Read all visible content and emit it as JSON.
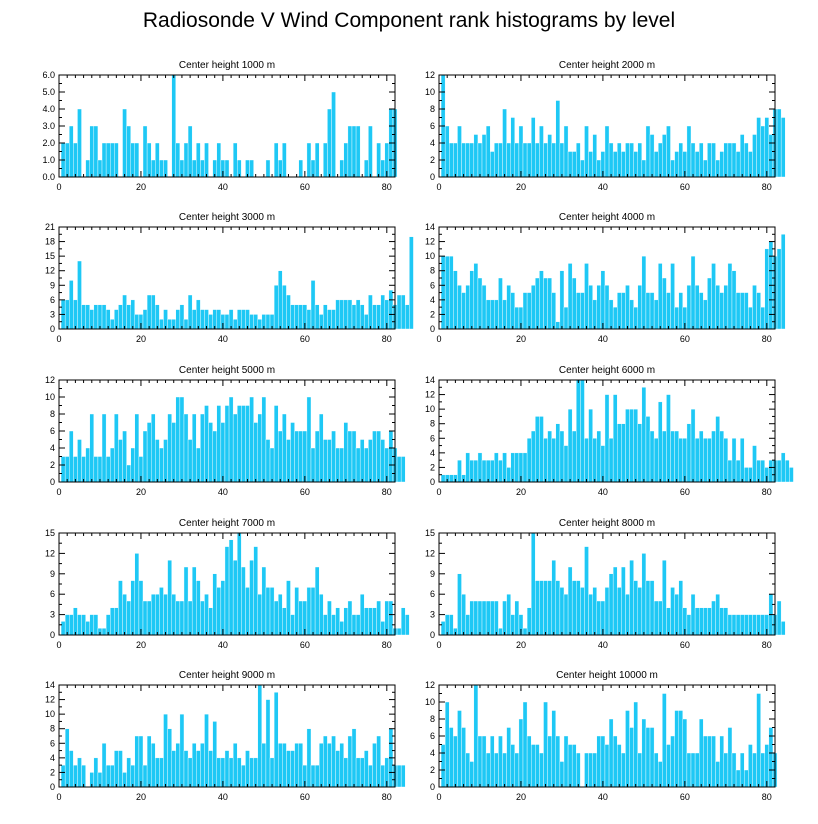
{
  "title": "Radiosonde V Wind Component rank histograms by level",
  "colors": {
    "bar": "#1ec8f5",
    "axis": "#000000",
    "background": "#ffffff"
  },
  "chart_data": [
    {
      "type": "bar",
      "title": "Center height 1000 m",
      "x_start": 1,
      "xlim": [
        0,
        82
      ],
      "xticks": [
        0,
        20,
        40,
        60,
        80
      ],
      "ylim": [
        0,
        6
      ],
      "yticks": [
        "0.0",
        "1.0",
        "2.0",
        "3.0",
        "4.0",
        "5.0",
        "6.0"
      ],
      "values": [
        2,
        2,
        3,
        2,
        4,
        0,
        1,
        3,
        3,
        1,
        2,
        2,
        2,
        2,
        0,
        4,
        3,
        2,
        2,
        0,
        3,
        2,
        1,
        2,
        1,
        1,
        0,
        6,
        2,
        1,
        2,
        3,
        1,
        2,
        1,
        2,
        0,
        1,
        2,
        1,
        1,
        0,
        2,
        1,
        0,
        1,
        1,
        0,
        0,
        0,
        1,
        0,
        2,
        1,
        2,
        0,
        0,
        0,
        1,
        0,
        2,
        1,
        2,
        0,
        2,
        4,
        5,
        0,
        1,
        2,
        3,
        3,
        3,
        0,
        1,
        3,
        0,
        2,
        1,
        2,
        4,
        4
      ]
    },
    {
      "type": "bar",
      "title": "Center height 2000 m",
      "x_start": 1,
      "xlim": [
        0,
        82
      ],
      "xticks": [
        0,
        20,
        40,
        60,
        80
      ],
      "ylim": [
        0,
        12
      ],
      "yticks": [
        "0",
        "2",
        "4",
        "6",
        "8",
        "10",
        "12"
      ],
      "values": [
        12,
        6,
        4,
        4,
        6,
        4,
        4,
        4,
        5,
        4,
        5,
        6,
        3,
        4,
        4,
        8,
        4,
        7,
        4,
        6,
        4,
        4,
        7,
        4,
        6,
        4,
        5,
        4,
        9,
        4,
        6,
        3,
        3,
        4,
        2,
        6,
        3,
        5,
        2,
        3,
        6,
        4,
        3,
        4,
        3,
        4,
        4,
        3,
        4,
        2,
        6,
        5,
        3,
        4,
        5,
        6,
        2,
        3,
        4,
        3,
        6,
        4,
        3,
        4,
        2,
        4,
        4,
        2,
        3,
        4,
        4,
        4,
        3,
        5,
        4,
        3,
        5,
        7,
        6,
        7,
        5,
        8,
        8,
        7
      ]
    },
    {
      "type": "bar",
      "title": "Center height 3000 m",
      "x_start": 1,
      "xlim": [
        0,
        82
      ],
      "xticks": [
        0,
        20,
        40,
        60,
        80
      ],
      "ylim": [
        0,
        21
      ],
      "yticks": [
        "0",
        "3",
        "6",
        "9",
        "12",
        "15",
        "18",
        "21"
      ],
      "values": [
        6,
        6,
        10,
        6,
        14,
        5,
        5,
        4,
        5,
        5,
        5,
        4,
        2,
        4,
        5,
        7,
        5,
        6,
        3,
        3,
        4,
        7,
        7,
        5,
        2,
        4,
        2,
        2,
        4,
        5,
        2,
        7,
        4,
        6,
        4,
        4,
        3,
        4,
        4,
        3,
        3,
        4,
        2,
        4,
        4,
        4,
        3,
        3,
        2,
        3,
        3,
        3,
        9,
        12,
        9,
        7,
        5,
        5,
        5,
        5,
        4,
        10,
        5,
        3,
        5,
        4,
        4,
        6,
        6,
        6,
        6,
        5,
        6,
        5,
        3,
        7,
        5,
        5,
        7,
        6,
        8,
        5,
        7,
        7,
        5,
        19
      ]
    },
    {
      "type": "bar",
      "title": "Center height 4000 m",
      "x_start": 1,
      "xlim": [
        0,
        82
      ],
      "xticks": [
        0,
        20,
        40,
        60,
        80
      ],
      "ylim": [
        0,
        14
      ],
      "yticks": [
        "0",
        "2",
        "4",
        "6",
        "8",
        "10",
        "12",
        "14"
      ],
      "values": [
        10,
        10,
        10,
        8,
        6,
        5,
        6,
        8,
        9,
        7,
        6,
        4,
        4,
        4,
        7,
        4,
        6,
        5,
        3,
        3,
        5,
        5,
        6,
        7,
        8,
        7,
        7,
        5,
        1,
        8,
        3,
        9,
        7,
        5,
        5,
        9,
        6,
        4,
        6,
        8,
        6,
        4,
        3,
        5,
        5,
        6,
        4,
        3,
        6,
        10,
        5,
        5,
        4,
        9,
        7,
        5,
        9,
        3,
        5,
        3,
        6,
        10,
        6,
        5,
        4,
        7,
        9,
        6,
        5,
        6,
        9,
        8,
        5,
        5,
        5,
        3,
        6,
        5,
        3,
        11,
        12,
        10,
        11,
        13
      ]
    },
    {
      "type": "bar",
      "title": "Center height 5000 m",
      "x_start": 1,
      "xlim": [
        0,
        82
      ],
      "xticks": [
        0,
        20,
        40,
        60,
        80
      ],
      "ylim": [
        0,
        12
      ],
      "yticks": [
        "0",
        "2",
        "4",
        "6",
        "8",
        "10",
        "12"
      ],
      "values": [
        3,
        3,
        6,
        3,
        5,
        3,
        4,
        8,
        3,
        3,
        8,
        3,
        4,
        8,
        5,
        6,
        2,
        4,
        8,
        3,
        6,
        7,
        8,
        5,
        4,
        5,
        8,
        7,
        10,
        10,
        8,
        5,
        8,
        4,
        8,
        9,
        7,
        6,
        9,
        7,
        9,
        10,
        8,
        9,
        9,
        9,
        10,
        7,
        8,
        10,
        5,
        4,
        9,
        6,
        8,
        5,
        7,
        6,
        6,
        6,
        10,
        4,
        6,
        8,
        5,
        5,
        6,
        4,
        4,
        7,
        6,
        6,
        4,
        5,
        4,
        5,
        6,
        6,
        5,
        4,
        6,
        4,
        3,
        3
      ]
    },
    {
      "type": "bar",
      "title": "Center height 6000 m",
      "x_start": 1,
      "xlim": [
        0,
        82
      ],
      "xticks": [
        0,
        20,
        40,
        60,
        80
      ],
      "ylim": [
        0,
        14
      ],
      "yticks": [
        "0",
        "2",
        "4",
        "6",
        "8",
        "10",
        "12",
        "14"
      ],
      "values": [
        1,
        1,
        1,
        1,
        3,
        1,
        4,
        3,
        3,
        4,
        3,
        3,
        3,
        4,
        3,
        4,
        2,
        4,
        4,
        4,
        4,
        6,
        7,
        9,
        9,
        6,
        7,
        6,
        8,
        7,
        5,
        10,
        7,
        14,
        14,
        6,
        10,
        6,
        7,
        5,
        12,
        6,
        12,
        8,
        8,
        10,
        10,
        10,
        8,
        13,
        9,
        7,
        6,
        11,
        7,
        12,
        7,
        7,
        6,
        6,
        8,
        10,
        6,
        7,
        6,
        6,
        7,
        9,
        7,
        6,
        3,
        6,
        3,
        6,
        2,
        2,
        5,
        3,
        3,
        2,
        3,
        3,
        3,
        4,
        3,
        2
      ]
    },
    {
      "type": "bar",
      "title": "Center height 7000 m",
      "x_start": 1,
      "xlim": [
        0,
        82
      ],
      "xticks": [
        0,
        20,
        40,
        60,
        80
      ],
      "ylim": [
        0,
        15
      ],
      "yticks": [
        "0",
        "3",
        "6",
        "9",
        "12",
        "15"
      ],
      "values": [
        2,
        3,
        3,
        4,
        3,
        3,
        2,
        3,
        3,
        1,
        1,
        3,
        4,
        4,
        8,
        6,
        5,
        8,
        12,
        8,
        5,
        5,
        6,
        6,
        7,
        6,
        11,
        6,
        5,
        5,
        10,
        5,
        10,
        8,
        5,
        6,
        4,
        9,
        7,
        8,
        13,
        14,
        11,
        15,
        10,
        7,
        11,
        13,
        6,
        10,
        7,
        7,
        5,
        6,
        4,
        8,
        3,
        7,
        5,
        5,
        7,
        7,
        10,
        6,
        3,
        5,
        3,
        4,
        2,
        4,
        5,
        3,
        3,
        6,
        4,
        4,
        4,
        5,
        2,
        5,
        5,
        1,
        1,
        4,
        3
      ]
    },
    {
      "type": "bar",
      "title": "Center height 8000 m",
      "x_start": 1,
      "xlim": [
        0,
        82
      ],
      "xticks": [
        0,
        20,
        40,
        60,
        80
      ],
      "ylim": [
        0,
        15
      ],
      "yticks": [
        "0",
        "3",
        "6",
        "9",
        "12",
        "15"
      ],
      "values": [
        2,
        3,
        3,
        1,
        9,
        6,
        3,
        5,
        5,
        5,
        5,
        5,
        5,
        5,
        1,
        5,
        6,
        3,
        5,
        3,
        1,
        4,
        15,
        8,
        8,
        8,
        8,
        11,
        8,
        7,
        6,
        10,
        8,
        8,
        7,
        13,
        6,
        7,
        5,
        5,
        7,
        9,
        10,
        7,
        10,
        6,
        11,
        8,
        7,
        12,
        8,
        8,
        5,
        5,
        11,
        4,
        7,
        6,
        8,
        4,
        3,
        6,
        4,
        4,
        4,
        4,
        5,
        6,
        4,
        4,
        3,
        3,
        3,
        3,
        3,
        3,
        3,
        3,
        3,
        3,
        6,
        3,
        5,
        2
      ]
    },
    {
      "type": "bar",
      "title": "Center height 9000 m",
      "x_start": 1,
      "xlim": [
        0,
        82
      ],
      "xticks": [
        0,
        20,
        40,
        60,
        80
      ],
      "ylim": [
        0,
        14
      ],
      "yticks": [
        "0",
        "2",
        "4",
        "6",
        "8",
        "10",
        "12",
        "14"
      ],
      "values": [
        3,
        8,
        5,
        3,
        4,
        3,
        0,
        2,
        4,
        2,
        6,
        3,
        3,
        5,
        5,
        2,
        4,
        3,
        7,
        7,
        3,
        7,
        6,
        4,
        4,
        10,
        8,
        5,
        6,
        10,
        5,
        4,
        6,
        5,
        6,
        10,
        5,
        9,
        4,
        4,
        5,
        4,
        6,
        4,
        3,
        5,
        4,
        4,
        14,
        6,
        12,
        4,
        13,
        6,
        6,
        5,
        5,
        6,
        6,
        3,
        8,
        3,
        3,
        6,
        7,
        6,
        7,
        5,
        6,
        4,
        7,
        8,
        4,
        4,
        5,
        3,
        6,
        7,
        3,
        4,
        8,
        3,
        3,
        3
      ]
    },
    {
      "type": "bar",
      "title": "Center height 10000 m",
      "x_start": 1,
      "xlim": [
        0,
        82
      ],
      "xticks": [
        0,
        20,
        40,
        60,
        80
      ],
      "ylim": [
        0,
        12
      ],
      "yticks": [
        "0",
        "2",
        "4",
        "6",
        "8",
        "10",
        "12"
      ],
      "values": [
        5,
        10,
        7,
        6,
        9,
        7,
        4,
        3,
        12,
        6,
        6,
        4,
        6,
        4,
        6,
        4,
        7,
        5,
        4,
        8,
        10,
        6,
        5,
        5,
        4,
        10,
        6,
        9,
        6,
        3,
        6,
        5,
        5,
        4,
        0,
        4,
        4,
        4,
        6,
        6,
        5,
        8,
        6,
        5,
        4,
        9,
        7,
        10,
        4,
        8,
        7,
        7,
        4,
        3,
        11,
        5,
        6,
        9,
        9,
        8,
        4,
        4,
        4,
        8,
        6,
        6,
        6,
        3,
        6,
        4,
        7,
        4,
        2,
        4,
        2,
        5,
        4,
        11,
        4,
        5,
        7,
        4
      ]
    }
  ]
}
